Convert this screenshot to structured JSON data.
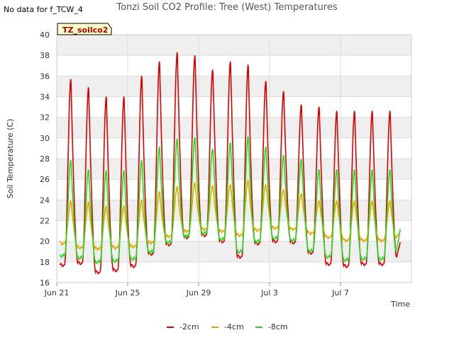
{
  "header": {
    "note": "No data for f_TCW_4"
  },
  "chart_data": {
    "type": "line",
    "title": "Tonzi Soil CO2 Profile: Tree (West) Temperatures",
    "xlabel": "Time",
    "ylabel": "Soil Temperature (C)",
    "ylim": [
      16,
      40
    ],
    "yticks": [
      16,
      18,
      20,
      22,
      24,
      26,
      28,
      30,
      32,
      34,
      36,
      38,
      40
    ],
    "xrange_days": [
      0,
      20.0
    ],
    "xticks": [
      {
        "day": 0,
        "label": "Jun 21"
      },
      {
        "day": 4,
        "label": "Jun 25"
      },
      {
        "day": 8,
        "label": "Jun 29"
      },
      {
        "day": 12,
        "label": "Jul 3"
      },
      {
        "day": 16,
        "label": "Jul 7"
      }
    ],
    "grid": true,
    "legend_position": "bottom",
    "site_label": "TZ_soilco2",
    "series": [
      {
        "name": "-2cm",
        "color": "#dd0000",
        "daily_min": [
          17.7,
          17.9,
          17.0,
          17.2,
          17.6,
          18.8,
          19.7,
          20.4,
          20.6,
          20.0,
          18.5,
          19.8,
          20.0,
          19.9,
          18.9,
          17.8,
          17.6,
          17.8
        ],
        "daily_max": [
          35.8,
          35.0,
          34.1,
          34.1,
          36.1,
          37.5,
          38.4,
          38.1,
          36.7,
          37.5,
          37.2,
          35.6,
          34.6,
          33.3,
          33.1,
          32.7
        ],
        "final_value": 20.0
      },
      {
        "name": "-4cm",
        "color": "#f0a000",
        "daily_min": [
          19.8,
          19.4,
          19.3,
          19.4,
          19.5,
          19.9,
          20.5,
          21.0,
          21.2,
          21.0,
          20.6,
          21.1,
          21.3,
          21.2,
          20.8,
          20.4,
          20.1,
          20.1
        ],
        "daily_max": [
          23.9,
          23.8,
          23.4,
          23.4,
          24.0,
          24.8,
          25.3,
          25.7,
          25.4,
          25.5,
          25.9,
          25.5,
          25.0,
          24.6,
          23.9,
          23.9
        ],
        "final_value": 21.0
      },
      {
        "name": "-8cm",
        "color": "#22dd22",
        "daily_min": [
          18.6,
          18.4,
          18.0,
          18.1,
          18.3,
          19.0,
          19.9,
          20.5,
          20.8,
          20.2,
          19.0,
          20.0,
          20.3,
          20.1,
          19.1,
          18.5,
          18.2,
          18.3
        ],
        "daily_max": [
          27.9,
          27.0,
          26.9,
          26.9,
          27.9,
          29.2,
          30.0,
          30.1,
          29.0,
          29.6,
          30.2,
          29.2,
          28.4,
          28.0,
          27.0,
          27.0
        ],
        "final_value": 21.3
      }
    ]
  }
}
